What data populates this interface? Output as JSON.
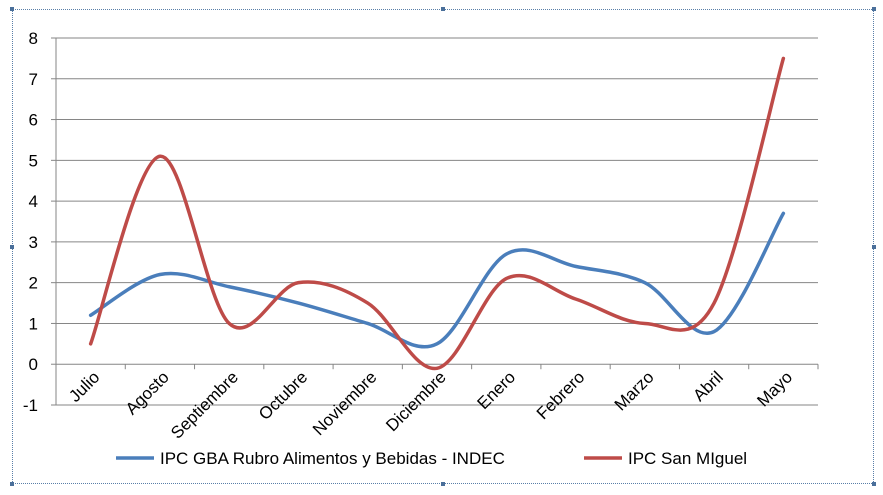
{
  "chart_data": {
    "type": "line",
    "title": "",
    "xlabel": "",
    "ylabel": "",
    "categories": [
      "Julio",
      "Agosto",
      "Septiembre",
      "Octubre",
      "Noviembre",
      "Diciembre",
      "Enero",
      "Febrero",
      "Marzo",
      "Abril",
      "Mayo"
    ],
    "ylim": [
      -1,
      8
    ],
    "yticks": [
      -1,
      0,
      1,
      2,
      3,
      4,
      5,
      6,
      7,
      8
    ],
    "grid": true,
    "legend_position": "bottom",
    "smooth": true,
    "series": [
      {
        "name": "IPC GBA Rubro Alimentos y Bebidas - INDEC",
        "color": "#4a7ebb",
        "values": [
          1.2,
          2.2,
          1.9,
          1.5,
          1.0,
          0.5,
          2.7,
          2.4,
          2.0,
          0.8,
          3.7
        ]
      },
      {
        "name": "IPC San MIguel",
        "color": "#be4b48",
        "values": [
          0.5,
          5.1,
          1.0,
          2.0,
          1.5,
          -0.1,
          2.1,
          1.6,
          1.0,
          1.5,
          7.5
        ]
      }
    ]
  }
}
